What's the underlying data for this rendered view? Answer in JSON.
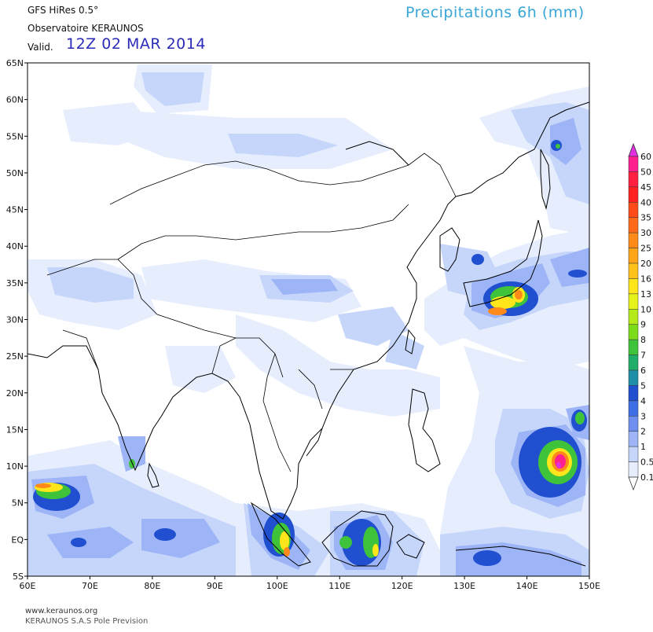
{
  "header": {
    "model": "GFS HiRes 0.5°",
    "source": "Observatoire KERAUNOS",
    "valid_label": "Valid.",
    "valid_date": "12Z 02 MAR 2014",
    "product_title": "Precipitations 6h (mm)"
  },
  "footer": {
    "website": "www.keraunos.org",
    "credit": "KERAUNOS S.A.S Pole Prevision"
  },
  "map": {
    "lat_labels": [
      "65N",
      "60N",
      "55N",
      "50N",
      "45N",
      "40N",
      "35N",
      "30N",
      "25N",
      "20N",
      "15N",
      "10N",
      "5N",
      "EQ",
      "5S"
    ],
    "lon_labels": [
      "60E",
      "70E",
      "80E",
      "90E",
      "100E",
      "110E",
      "120E",
      "130E",
      "140E",
      "150E"
    ],
    "lat_range": [
      -5,
      65
    ],
    "lon_range": [
      60,
      150
    ]
  },
  "legend": {
    "levels": [
      "60",
      "50",
      "45",
      "40",
      "35",
      "30",
      "25",
      "20",
      "16",
      "13",
      "10",
      "9",
      "8",
      "7",
      "6",
      "5",
      "4",
      "3",
      "2",
      "1",
      "0.5",
      "0.1"
    ],
    "colors": [
      "#e030e0",
      "#ff1f8f",
      "#ff1f3f",
      "#ff2020",
      "#ff4a1a",
      "#ff6a1a",
      "#ff8a1a",
      "#ffa51a",
      "#ffc21a",
      "#ffe61a",
      "#e6f21a",
      "#b5ea1a",
      "#7cdc1a",
      "#3ec33a",
      "#1fae6a",
      "#1f8fa8",
      "#2050d0",
      "#3e6ee6",
      "#6e8ff0",
      "#9db5f7",
      "#c6d6fb",
      "#e6edfd"
    ]
  }
}
